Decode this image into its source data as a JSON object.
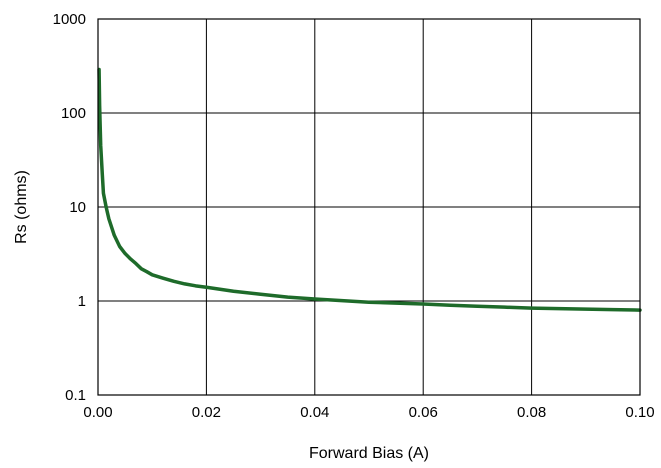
{
  "chart_data": {
    "type": "line",
    "title": "",
    "xlabel": "Forward Bias (A)",
    "ylabel": "Rs (ohms)",
    "xlim": [
      0,
      0.1
    ],
    "ylim": [
      0.1,
      1000
    ],
    "yscale": "log",
    "grid": true,
    "x_ticks": [
      "0.00",
      "0.02",
      "0.04",
      "0.06",
      "0.08",
      "0.10"
    ],
    "x_tick_values": [
      0,
      0.02,
      0.04,
      0.06,
      0.08,
      0.1
    ],
    "y_ticks": [
      "0.1",
      "1",
      "10",
      "100",
      "1000"
    ],
    "y_tick_values": [
      0.1,
      1,
      10,
      100,
      1000
    ],
    "series": [
      {
        "color": "#1e6b2a",
        "x": [
          0.0002,
          0.0003,
          0.0005,
          0.0008,
          0.001,
          0.0015,
          0.002,
          0.003,
          0.004,
          0.005,
          0.006,
          0.007,
          0.008,
          0.009,
          0.01,
          0.012,
          0.014,
          0.016,
          0.018,
          0.02,
          0.025,
          0.03,
          0.035,
          0.04,
          0.045,
          0.05,
          0.055,
          0.06,
          0.065,
          0.07,
          0.075,
          0.08,
          0.085,
          0.09,
          0.095,
          0.1
        ],
        "values": [
          290,
          120,
          45,
          22,
          14,
          10,
          7.5,
          5.0,
          3.8,
          3.2,
          2.8,
          2.5,
          2.2,
          2.05,
          1.9,
          1.75,
          1.62,
          1.52,
          1.45,
          1.4,
          1.27,
          1.18,
          1.1,
          1.05,
          1.01,
          0.97,
          0.95,
          0.93,
          0.9,
          0.88,
          0.86,
          0.84,
          0.83,
          0.82,
          0.81,
          0.8
        ]
      }
    ]
  }
}
